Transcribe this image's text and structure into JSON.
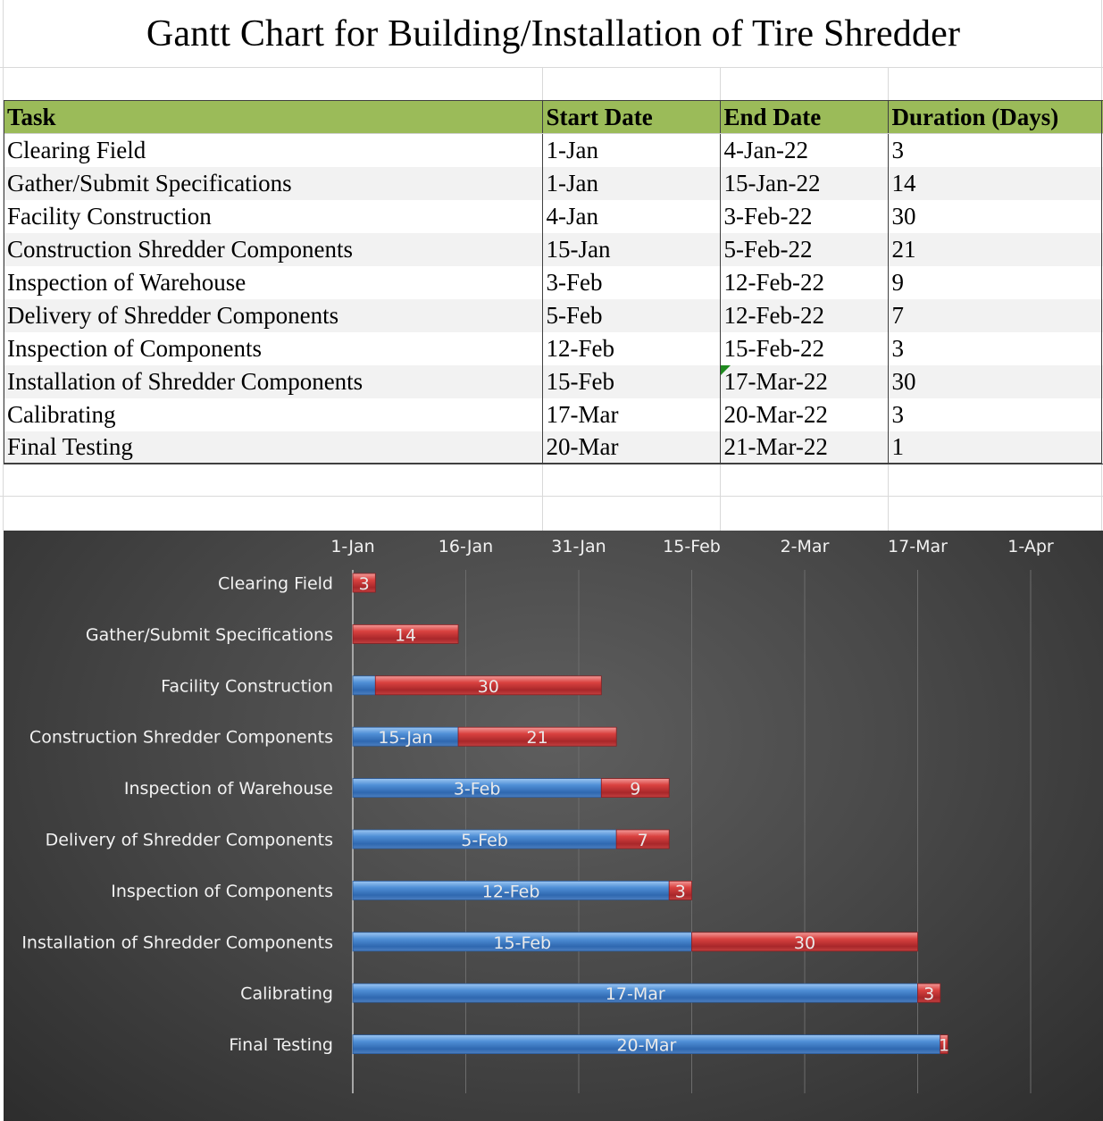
{
  "sheet": {
    "title": "Gantt Chart for Building/Installation of Tire Shredder",
    "headers": [
      "Task",
      "Start Date",
      "End Date",
      "Duration (Days)"
    ],
    "rows": [
      [
        "Clearing Field",
        "1-Jan",
        "4-Jan-22",
        "3"
      ],
      [
        "Gather/Submit Specifications",
        "1-Jan",
        "15-Jan-22",
        "14"
      ],
      [
        "Facility Construction",
        "4-Jan",
        "3-Feb-22",
        "30"
      ],
      [
        "Construction Shredder Components",
        "15-Jan",
        "5-Feb-22",
        "21"
      ],
      [
        "Inspection of Warehouse",
        "3-Feb",
        "12-Feb-22",
        "9"
      ],
      [
        "Delivery of Shredder Components",
        "5-Feb",
        "12-Feb-22",
        "7"
      ],
      [
        "Inspection of Components",
        "12-Feb",
        "15-Feb-22",
        "3"
      ],
      [
        "Installation of Shredder Components",
        "15-Feb",
        "17-Mar-22",
        "30"
      ],
      [
        "Calibrating",
        "17-Mar",
        "20-Mar-22",
        "3"
      ],
      [
        "Final Testing",
        "20-Mar",
        "21-Mar-22",
        "1"
      ]
    ]
  },
  "chart_data": {
    "type": "bar",
    "orientation": "horizontal",
    "stacked": true,
    "categories": [
      "Clearing Field",
      "Gather/Submit Specifications",
      "Facility Construction",
      "Construction Shredder Components",
      "Inspection of Warehouse",
      "Delivery of Shredder Components",
      "Inspection of Components",
      "Installation of Shredder Components",
      "Calibrating",
      "Final Testing"
    ],
    "series": [
      {
        "values": [
          "2022-01-01",
          "2022-01-01",
          "2022-01-04",
          "2022-01-15",
          "2022-02-03",
          "2022-02-05",
          "2022-02-12",
          "2022-02-15",
          "2022-03-17",
          "2022-03-20"
        ],
        "data_labels": [
          "",
          "",
          "",
          "15-Jan",
          "3-Feb",
          "5-Feb",
          "12-Feb",
          "15-Feb",
          "17-Mar",
          "20-Mar"
        ],
        "color": "#4a86c8"
      },
      {
        "values": [
          3,
          14,
          30,
          21,
          9,
          7,
          3,
          30,
          3,
          1
        ],
        "data_labels": [
          "3",
          "14",
          "30",
          "21",
          "9",
          "7",
          "3",
          "30",
          "3",
          "1"
        ],
        "color": "#c0393b"
      }
    ],
    "xaxis": {
      "position": "top",
      "range": [
        "2022-01-01",
        "2022-04-01"
      ],
      "tick_values": [
        "2022-01-01",
        "2022-01-16",
        "2022-01-31",
        "2022-02-15",
        "2022-03-02",
        "2022-03-17",
        "2022-04-01"
      ],
      "tick_labels": [
        "1-Jan",
        "16-Jan",
        "31-Jan",
        "15-Feb",
        "2-Mar",
        "17-Mar",
        "1-Apr"
      ]
    },
    "grid": true,
    "legend": "none",
    "background": "#404040",
    "axis_text_color": "#f2f2f2"
  }
}
